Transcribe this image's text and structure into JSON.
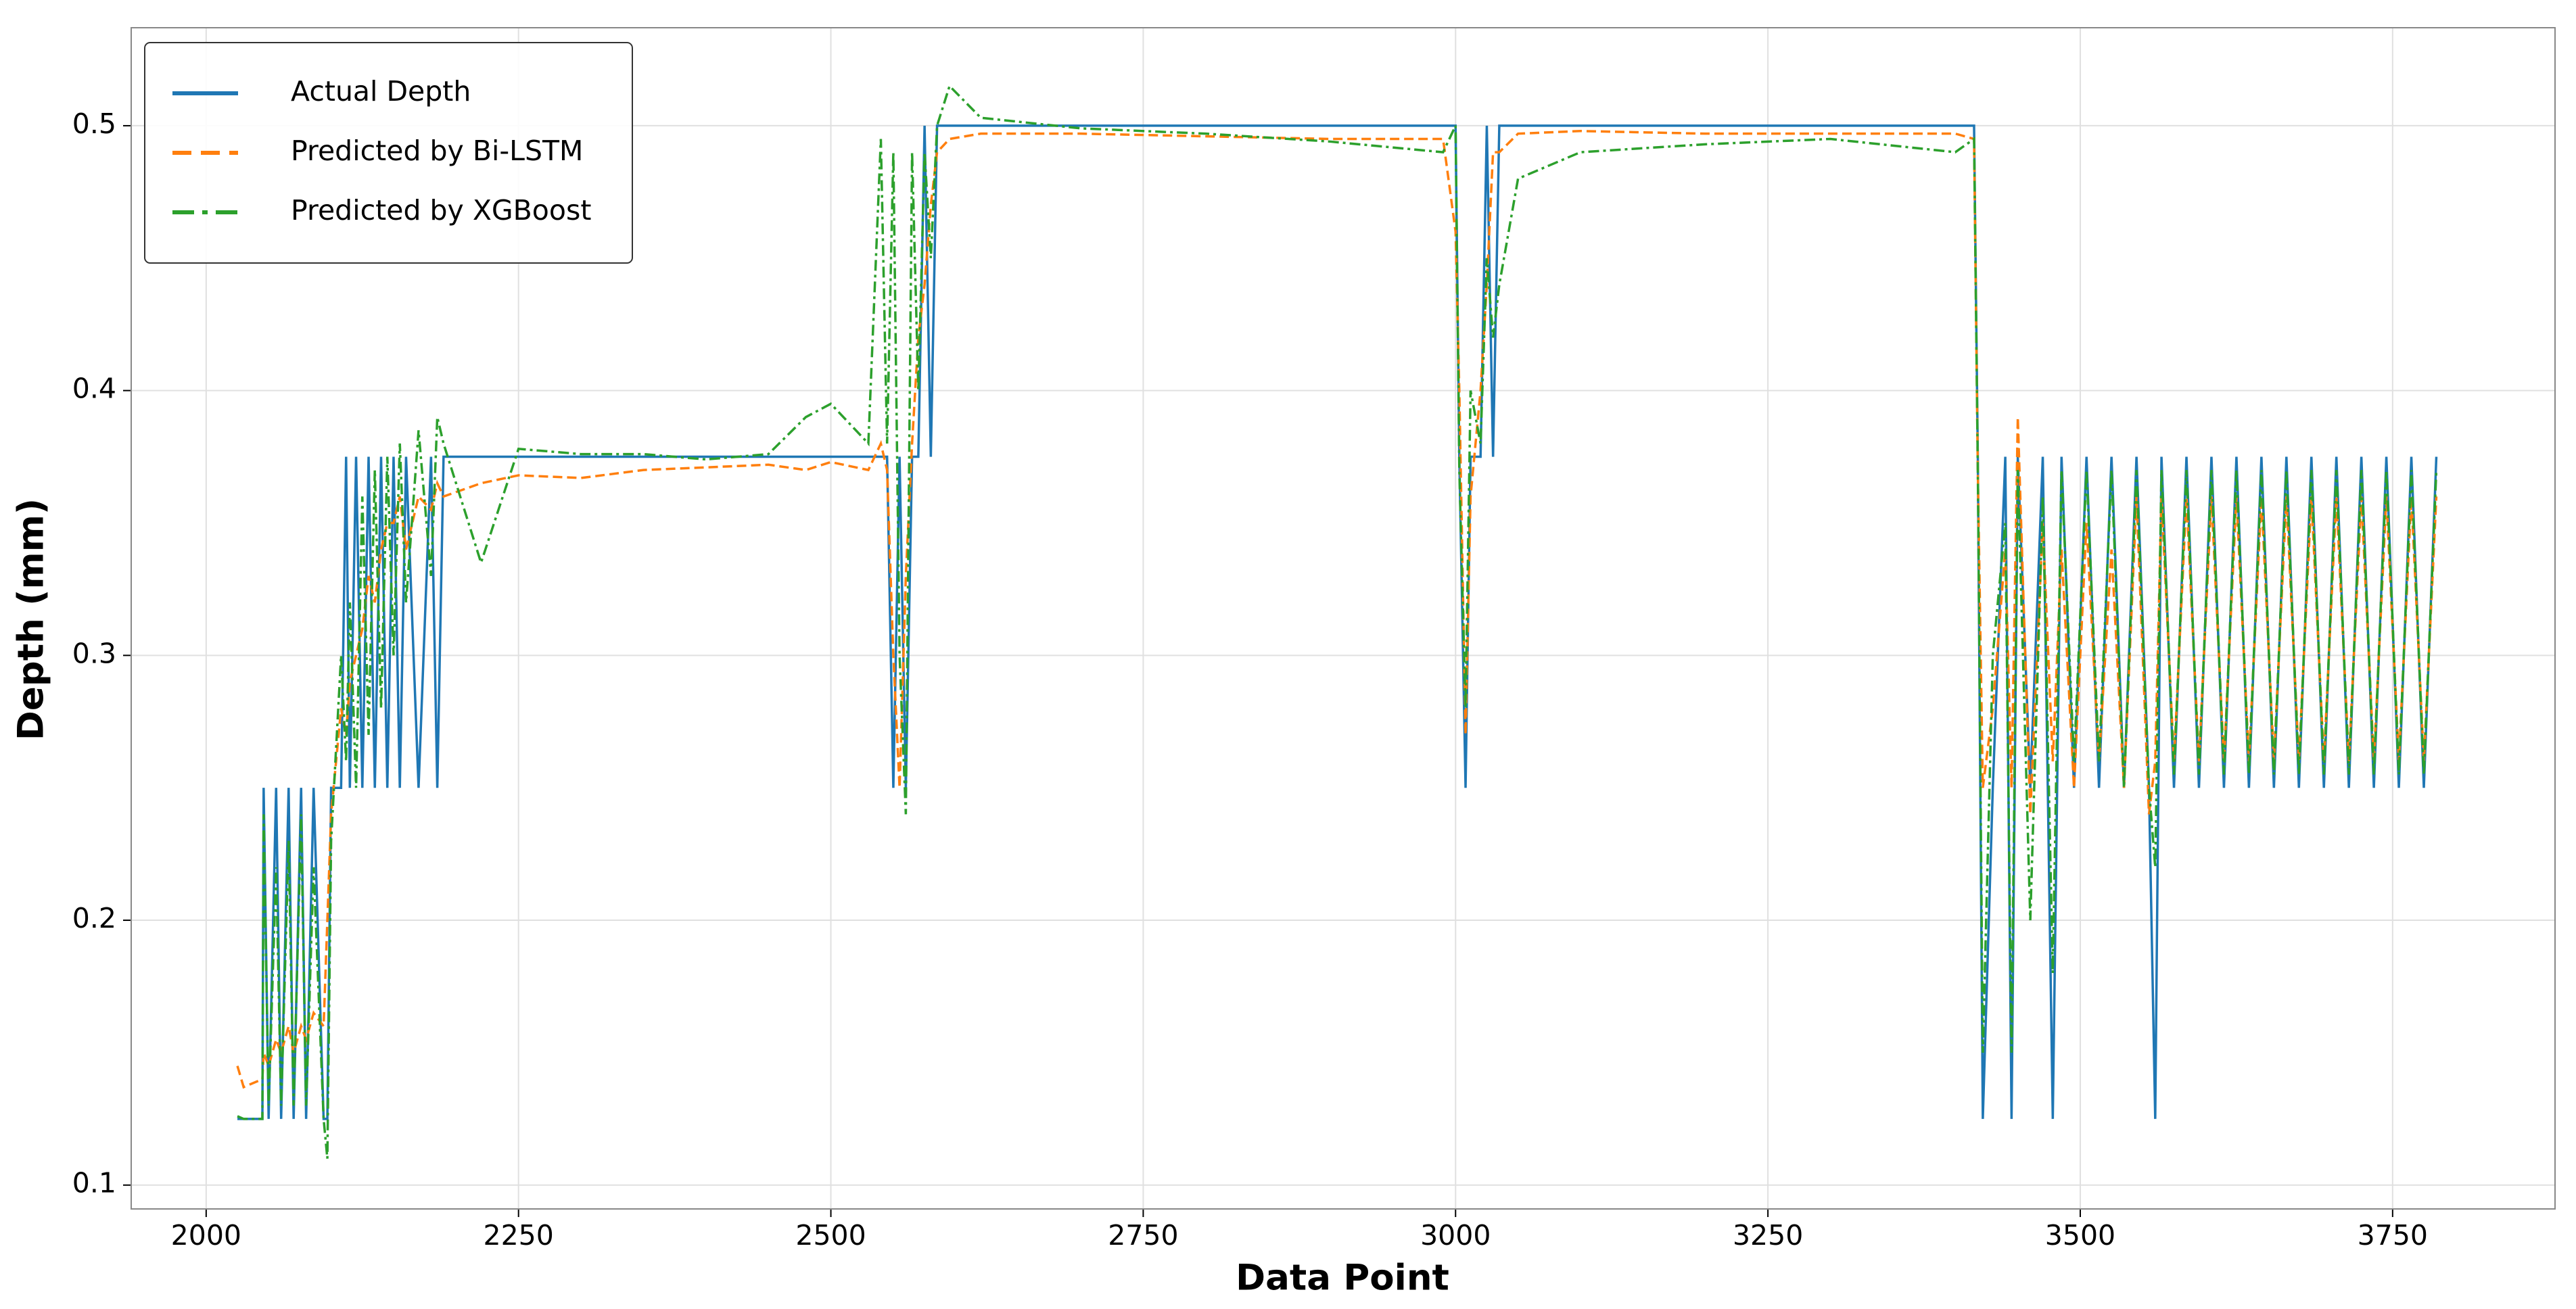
{
  "chart_data": {
    "type": "line",
    "xlabel": "Data Point",
    "ylabel": "Depth (mm)",
    "xlim": [
      1940,
      3880
    ],
    "ylim": [
      0.091,
      0.537
    ],
    "xticks": [
      2000,
      2250,
      2500,
      2750,
      3000,
      3250,
      3500,
      3750
    ],
    "yticks": [
      0.1,
      0.2,
      0.3,
      0.4,
      0.5
    ],
    "grid": true,
    "legend": "upper left",
    "x": [
      2025,
      2030,
      2045,
      2046,
      2050,
      2056,
      2060,
      2066,
      2070,
      2076,
      2080,
      2086,
      2094,
      2097,
      2100,
      2108,
      2112,
      2115,
      2120,
      2125,
      2130,
      2135,
      2140,
      2145,
      2150,
      2155,
      2160,
      2170,
      2180,
      2185,
      2190,
      2220,
      2250,
      2300,
      2350,
      2400,
      2450,
      2480,
      2500,
      2530,
      2540,
      2545,
      2550,
      2555,
      2560,
      2565,
      2570,
      2575,
      2580,
      2585,
      2595,
      2620,
      2700,
      2800,
      2900,
      2990,
      3000,
      3003,
      3008,
      3012,
      3020,
      3025,
      3030,
      3035,
      3050,
      3100,
      3200,
      3300,
      3400,
      3415,
      3418,
      3422,
      3430,
      3440,
      3445,
      3450,
      3460,
      3470,
      3478,
      3485,
      3495,
      3505,
      3515,
      3525,
      3535,
      3545,
      3555,
      3560,
      3565,
      3575,
      3585,
      3595,
      3605,
      3615,
      3625,
      3635,
      3645,
      3655,
      3665,
      3675,
      3685,
      3695,
      3705,
      3715,
      3725,
      3735,
      3745,
      3755,
      3765,
      3775,
      3785
    ],
    "series": [
      {
        "name": "Actual Depth",
        "color": "#1f77b4",
        "linestyle": "solid",
        "values": [
          0.125,
          0.125,
          0.125,
          0.25,
          0.125,
          0.25,
          0.125,
          0.25,
          0.125,
          0.25,
          0.125,
          0.25,
          0.125,
          0.125,
          0.25,
          0.25,
          0.375,
          0.25,
          0.375,
          0.25,
          0.375,
          0.25,
          0.375,
          0.25,
          0.375,
          0.25,
          0.375,
          0.25,
          0.375,
          0.25,
          0.375,
          0.375,
          0.375,
          0.375,
          0.375,
          0.375,
          0.375,
          0.375,
          0.375,
          0.375,
          0.375,
          0.375,
          0.25,
          0.375,
          0.25,
          0.375,
          0.375,
          0.5,
          0.375,
          0.5,
          0.5,
          0.5,
          0.5,
          0.5,
          0.5,
          0.5,
          0.5,
          0.375,
          0.25,
          0.375,
          0.375,
          0.5,
          0.375,
          0.5,
          0.5,
          0.5,
          0.5,
          0.5,
          0.5,
          0.5,
          0.375,
          0.125,
          0.25,
          0.375,
          0.125,
          0.375,
          0.25,
          0.375,
          0.125,
          0.375,
          0.25,
          0.375,
          0.25,
          0.375,
          0.25,
          0.375,
          0.25,
          0.125,
          0.375,
          0.25,
          0.375,
          0.25,
          0.375,
          0.25,
          0.375,
          0.25,
          0.375,
          0.25,
          0.375,
          0.25,
          0.375,
          0.25,
          0.375,
          0.25,
          0.375,
          0.25,
          0.375,
          0.25,
          0.375,
          0.25,
          0.375
        ]
      },
      {
        "name": "Predicted by Bi-LSTM",
        "color": "#ff7f0e",
        "linestyle": "dashed",
        "values": [
          0.145,
          0.137,
          0.14,
          0.15,
          0.145,
          0.155,
          0.15,
          0.16,
          0.15,
          0.16,
          0.155,
          0.165,
          0.16,
          0.2,
          0.24,
          0.28,
          0.27,
          0.29,
          0.3,
          0.31,
          0.33,
          0.32,
          0.34,
          0.35,
          0.35,
          0.36,
          0.34,
          0.36,
          0.355,
          0.365,
          0.36,
          0.365,
          0.368,
          0.367,
          0.37,
          0.371,
          0.372,
          0.37,
          0.373,
          0.37,
          0.38,
          0.37,
          0.3,
          0.25,
          0.33,
          0.38,
          0.42,
          0.44,
          0.47,
          0.49,
          0.495,
          0.497,
          0.497,
          0.496,
          0.495,
          0.495,
          0.46,
          0.4,
          0.27,
          0.36,
          0.4,
          0.44,
          0.49,
          0.49,
          0.497,
          0.498,
          0.497,
          0.497,
          0.497,
          0.495,
          0.37,
          0.25,
          0.28,
          0.34,
          0.25,
          0.39,
          0.24,
          0.35,
          0.26,
          0.34,
          0.25,
          0.35,
          0.26,
          0.34,
          0.25,
          0.36,
          0.24,
          0.26,
          0.36,
          0.26,
          0.36,
          0.26,
          0.36,
          0.26,
          0.36,
          0.26,
          0.36,
          0.26,
          0.36,
          0.26,
          0.36,
          0.26,
          0.36,
          0.26,
          0.36,
          0.26,
          0.36,
          0.26,
          0.36,
          0.26,
          0.36
        ]
      },
      {
        "name": "Predicted by XGBoost",
        "color": "#2ca02c",
        "linestyle": "dashdot",
        "values": [
          0.126,
          0.125,
          0.125,
          0.24,
          0.13,
          0.22,
          0.13,
          0.23,
          0.13,
          0.24,
          0.13,
          0.22,
          0.125,
          0.11,
          0.23,
          0.3,
          0.26,
          0.32,
          0.25,
          0.36,
          0.27,
          0.37,
          0.28,
          0.375,
          0.3,
          0.38,
          0.32,
          0.385,
          0.33,
          0.39,
          0.38,
          0.335,
          0.378,
          0.376,
          0.376,
          0.374,
          0.376,
          0.39,
          0.395,
          0.38,
          0.495,
          0.38,
          0.49,
          0.3,
          0.24,
          0.49,
          0.4,
          0.49,
          0.45,
          0.5,
          0.515,
          0.503,
          0.499,
          0.497,
          0.494,
          0.49,
          0.5,
          0.37,
          0.28,
          0.4,
          0.38,
          0.45,
          0.42,
          0.44,
          0.48,
          0.49,
          0.493,
          0.495,
          0.49,
          0.495,
          0.37,
          0.15,
          0.3,
          0.35,
          0.15,
          0.37,
          0.2,
          0.36,
          0.18,
          0.37,
          0.26,
          0.37,
          0.26,
          0.37,
          0.25,
          0.37,
          0.25,
          0.22,
          0.37,
          0.255,
          0.37,
          0.255,
          0.37,
          0.255,
          0.37,
          0.255,
          0.37,
          0.255,
          0.37,
          0.255,
          0.37,
          0.255,
          0.37,
          0.255,
          0.37,
          0.255,
          0.37,
          0.255,
          0.37,
          0.255,
          0.37
        ]
      }
    ]
  }
}
